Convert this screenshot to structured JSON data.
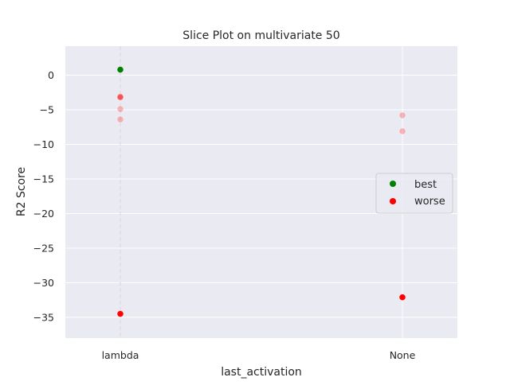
{
  "chart_data": {
    "type": "scatter",
    "title": "Slice Plot on multivariate 50",
    "xlabel": "last_activation",
    "ylabel": "R2 Score",
    "categories": [
      "lambda",
      "None"
    ],
    "ylim": [
      -38,
      4.2
    ],
    "yticks": [
      0,
      -5,
      -10,
      -15,
      -20,
      -25,
      -30,
      -35
    ],
    "ytick_labels": [
      "0",
      "−5",
      "−10",
      "−15",
      "−20",
      "−25",
      "−30",
      "−35"
    ],
    "grid": true,
    "best_category": "lambda",
    "legend_position": "center-right",
    "legend": [
      {
        "label": "best",
        "color": "#008000"
      },
      {
        "label": "worse",
        "color": "#ff0000"
      }
    ],
    "series": [
      {
        "name": "best",
        "color": "#008000",
        "points": [
          {
            "x": "lambda",
            "y": 0.8,
            "alpha": 1.0
          }
        ]
      },
      {
        "name": "worse",
        "color": "#ff0000",
        "points": [
          {
            "x": "lambda",
            "y": -3.1,
            "alpha": 0.45
          },
          {
            "x": "lambda",
            "y": -3.2,
            "alpha": 0.35
          },
          {
            "x": "lambda",
            "y": -4.9,
            "alpha": 0.25
          },
          {
            "x": "lambda",
            "y": -6.4,
            "alpha": 0.25
          },
          {
            "x": "lambda",
            "y": -34.5,
            "alpha": 1.0
          },
          {
            "x": "None",
            "y": -5.8,
            "alpha": 0.25
          },
          {
            "x": "None",
            "y": -8.1,
            "alpha": 0.25
          },
          {
            "x": "None",
            "y": -32.1,
            "alpha": 1.0
          }
        ]
      }
    ]
  },
  "colors": {
    "plot_background": "#eaeaf2",
    "grid": "#ffffff",
    "text": "#262626"
  }
}
